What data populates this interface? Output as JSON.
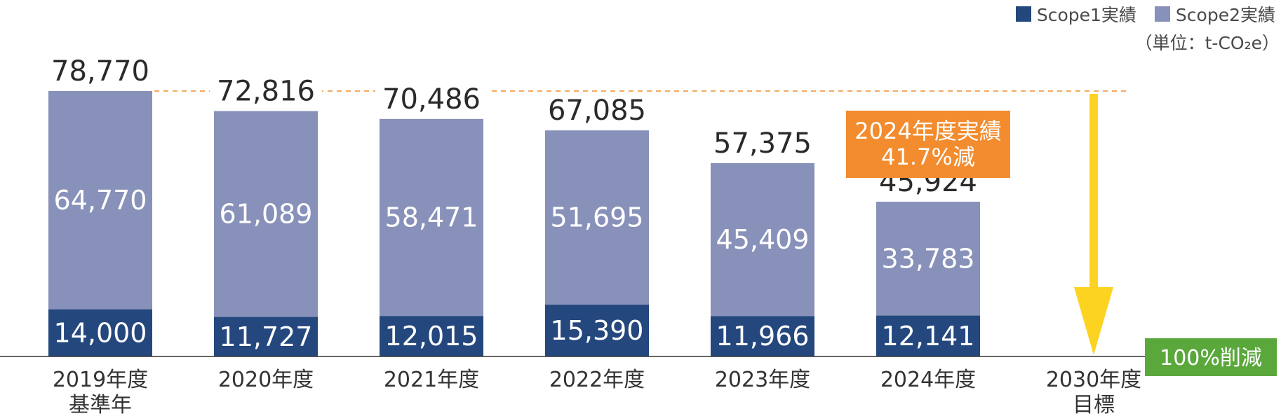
{
  "chart_data": {
    "type": "bar",
    "stacked": true,
    "categories": [
      "2019年度",
      "2020年度",
      "2021年度",
      "2022年度",
      "2023年度",
      "2024年度",
      "2030年度"
    ],
    "category_sublabels": [
      "基準年",
      "",
      "",
      "",
      "",
      "",
      "目標"
    ],
    "series": [
      {
        "name": "Scope1実績",
        "color": "#24477e",
        "values": [
          14000,
          11727,
          12015,
          15390,
          11966,
          12141,
          null
        ]
      },
      {
        "name": "Scope2実績",
        "color": "#8891b9",
        "values": [
          64770,
          61089,
          58471,
          51695,
          45409,
          33783,
          null
        ]
      }
    ],
    "totals": [
      78770,
      72816,
      70486,
      67085,
      57375,
      45924,
      null
    ],
    "unit_label": "（単位：t-CO₂e）",
    "ylim": [
      0,
      85000
    ],
    "grid": false,
    "legend_position": "top-right",
    "annotations": {
      "result_box": {
        "line1": "2024年度実績",
        "line2": "41.7%減",
        "color": "#f28c2e"
      },
      "target_box": {
        "text": "100%削減",
        "color": "#5aa83c"
      },
      "arrow_color": "#fdd321",
      "reference_line": {
        "value": 78770,
        "color": "#f28c2e"
      }
    }
  }
}
